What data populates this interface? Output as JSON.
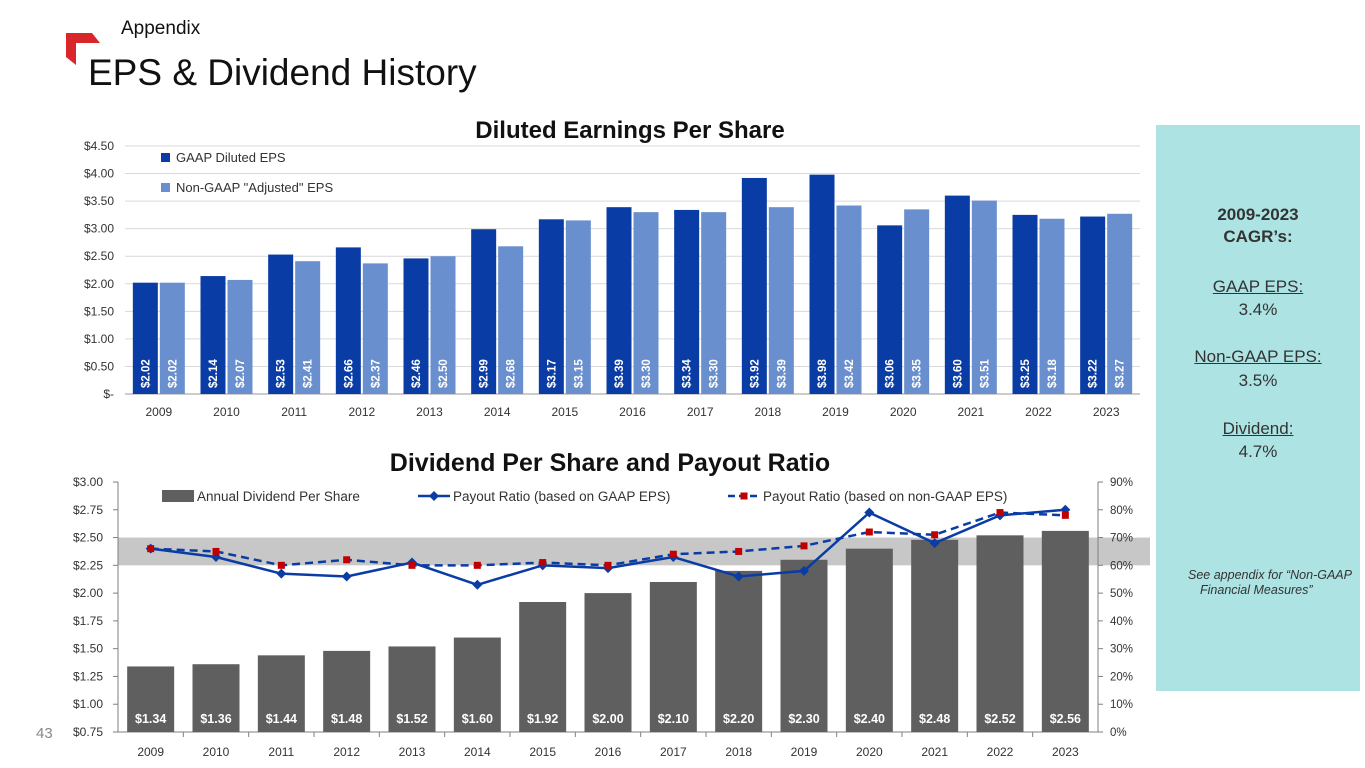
{
  "header": {
    "section": "Appendix",
    "title": "EPS & Dividend History",
    "page_number": "43",
    "accent_color": "#d9262b"
  },
  "sidebar": {
    "heading_line1": "2009-2023",
    "heading_line2": "CAGR’s:",
    "gaap_label": "GAAP EPS:",
    "gaap_value": "3.4%",
    "nongaap_label": "Non-GAAP EPS:",
    "nongaap_value": "3.5%",
    "dividend_label": "Dividend:",
    "dividend_value": "4.7%",
    "note": "See appendix for “Non-GAAP Financial Measures”",
    "background": "#ade3e3"
  },
  "chart_data": [
    {
      "type": "bar",
      "title": "Diluted Earnings Per Share",
      "categories": [
        "2009",
        "2010",
        "2011",
        "2012",
        "2013",
        "2014",
        "2015",
        "2016",
        "2017",
        "2018",
        "2019",
        "2020",
        "2021",
        "2022",
        "2023"
      ],
      "series": [
        {
          "name": "GAAP Diluted EPS",
          "color": "#0a3ca5",
          "values": [
            2.02,
            2.14,
            2.53,
            2.66,
            2.46,
            2.99,
            3.17,
            3.39,
            3.34,
            3.92,
            3.98,
            3.06,
            3.6,
            3.25,
            3.22
          ],
          "labels": [
            "$2.02",
            "$2.14",
            "$2.53",
            "$2.66",
            "$2.46",
            "$2.99",
            "$3.17",
            "$3.39",
            "$3.34",
            "$3.92",
            "$3.98",
            "$3.06",
            "$3.60",
            "$3.25",
            "$3.22"
          ]
        },
        {
          "name": "Non-GAAP \"Adjusted\" EPS",
          "color": "#6a8fcf",
          "values": [
            2.02,
            2.07,
            2.41,
            2.37,
            2.5,
            2.68,
            3.15,
            3.3,
            3.3,
            3.39,
            3.42,
            3.35,
            3.51,
            3.18,
            3.27
          ],
          "labels": [
            "$2.02",
            "$2.07",
            "$2.41",
            "$2.37",
            "$2.50",
            "$2.68",
            "$3.15",
            "$3.30",
            "$3.30",
            "$3.39",
            "$3.42",
            "$3.35",
            "$3.51",
            "$3.18",
            "$3.27"
          ]
        }
      ],
      "ylim": [
        0,
        4.5
      ],
      "yticks": [
        "$-",
        "$0.50",
        "$1.00",
        "$1.50",
        "$2.00",
        "$2.50",
        "$3.00",
        "$3.50",
        "$4.00",
        "$4.50"
      ],
      "legend_position": "top-left"
    },
    {
      "type": "bar+line",
      "title": "Dividend Per Share and Payout Ratio",
      "categories": [
        "2009",
        "2010",
        "2011",
        "2012",
        "2013",
        "2014",
        "2015",
        "2016",
        "2017",
        "2018",
        "2019",
        "2020",
        "2021",
        "2022",
        "2023"
      ],
      "bars": {
        "name": "Annual Dividend Per Share",
        "color": "#5f5f5f",
        "values": [
          1.34,
          1.36,
          1.44,
          1.48,
          1.52,
          1.6,
          1.92,
          2.0,
          2.1,
          2.2,
          2.3,
          2.4,
          2.48,
          2.52,
          2.56
        ],
        "labels": [
          "$1.34",
          "$1.36",
          "$1.44",
          "$1.48",
          "$1.52",
          "$1.60",
          "$1.92",
          "$2.00",
          "$2.10",
          "$2.20",
          "$2.30",
          "$2.40",
          "$2.48",
          "$2.52",
          "$2.56"
        ]
      },
      "lines": [
        {
          "name": "Payout Ratio (based on GAAP EPS)",
          "color": "#0a3ca5",
          "style": "solid",
          "values": [
            66,
            63,
            57,
            56,
            61,
            53,
            60,
            59,
            63,
            56,
            58,
            79,
            68,
            78,
            80
          ]
        },
        {
          "name": "Payout Ratio (based on non-GAAP EPS)",
          "color": "#0a3ca5",
          "marker_color": "#c00000",
          "style": "dashed",
          "values": [
            66,
            65,
            60,
            62,
            60,
            60,
            61,
            60,
            64,
            65,
            67,
            72,
            71,
            79,
            78
          ]
        }
      ],
      "ylim_left": [
        0.75,
        3.0
      ],
      "yticks_left": [
        "$0.75",
        "$1.00",
        "$1.25",
        "$1.50",
        "$1.75",
        "$2.00",
        "$2.25",
        "$2.50",
        "$2.75",
        "$3.00"
      ],
      "ylim_right": [
        0,
        90
      ],
      "yticks_right": [
        "0%",
        "10%",
        "20%",
        "30%",
        "40%",
        "50%",
        "60%",
        "70%",
        "80%",
        "90%"
      ],
      "target_band": [
        60,
        70
      ],
      "legend_position": "top"
    }
  ]
}
